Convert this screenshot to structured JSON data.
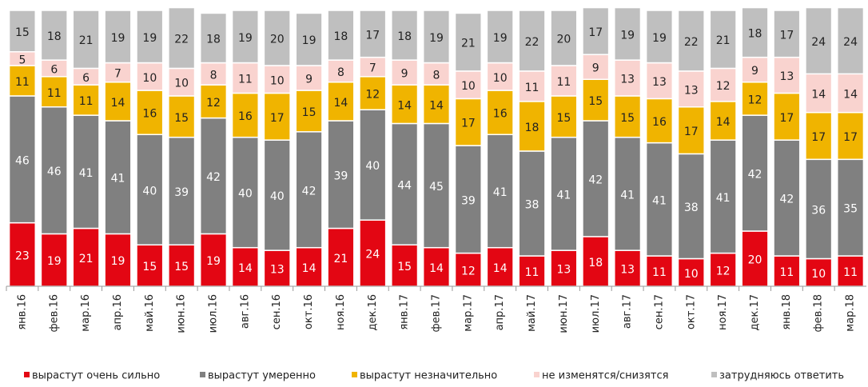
{
  "chart_data": {
    "type": "stacked_bar",
    "categories": [
      "янв.16",
      "фев.16",
      "мар.16",
      "апр.16",
      "май.16",
      "июн.16",
      "июл.16",
      "авг.16",
      "сен.16",
      "окт.16",
      "ноя.16",
      "дек.16",
      "янв.17",
      "фев.17",
      "мар.17",
      "апр.17",
      "май.17",
      "июн.17",
      "июл.17",
      "авг.17",
      "сен.17",
      "окт.17",
      "ноя.17",
      "дек.17",
      "янв.18",
      "фев.18",
      "мар.18"
    ],
    "series": [
      {
        "name": "вырастут очень сильно",
        "color": "#e30613",
        "values": [
          23,
          19,
          21,
          19,
          15,
          15,
          19,
          14,
          13,
          14,
          21,
          24,
          15,
          14,
          12,
          14,
          11,
          13,
          18,
          13,
          11,
          10,
          12,
          20,
          11,
          10,
          11
        ]
      },
      {
        "name": "вырастут умеренно",
        "color": "#808080",
        "values": [
          46,
          46,
          41,
          41,
          40,
          39,
          42,
          40,
          40,
          42,
          39,
          40,
          44,
          45,
          39,
          41,
          38,
          41,
          42,
          41,
          41,
          38,
          41,
          42,
          42,
          36,
          35
        ]
      },
      {
        "name": "вырастут незначительно",
        "color": "#f0b400",
        "values": [
          11,
          11,
          11,
          14,
          16,
          15,
          12,
          16,
          17,
          15,
          14,
          12,
          14,
          14,
          17,
          16,
          18,
          15,
          15,
          15,
          16,
          17,
          14,
          12,
          17,
          17,
          17
        ]
      },
      {
        "name": "не изменятся/снизятся",
        "color": "#f9d3cf",
        "values": [
          5,
          6,
          6,
          7,
          10,
          10,
          8,
          11,
          10,
          9,
          8,
          7,
          9,
          8,
          10,
          10,
          11,
          11,
          9,
          13,
          13,
          13,
          12,
          9,
          13,
          14,
          14
        ]
      },
      {
        "name": "затрудняюсь ответить",
        "color": "#bfbfbf",
        "values": [
          15,
          18,
          21,
          19,
          19,
          22,
          18,
          19,
          20,
          19,
          18,
          17,
          18,
          19,
          21,
          19,
          22,
          20,
          17,
          19,
          19,
          22,
          21,
          18,
          17,
          24,
          24
        ]
      }
    ]
  }
}
